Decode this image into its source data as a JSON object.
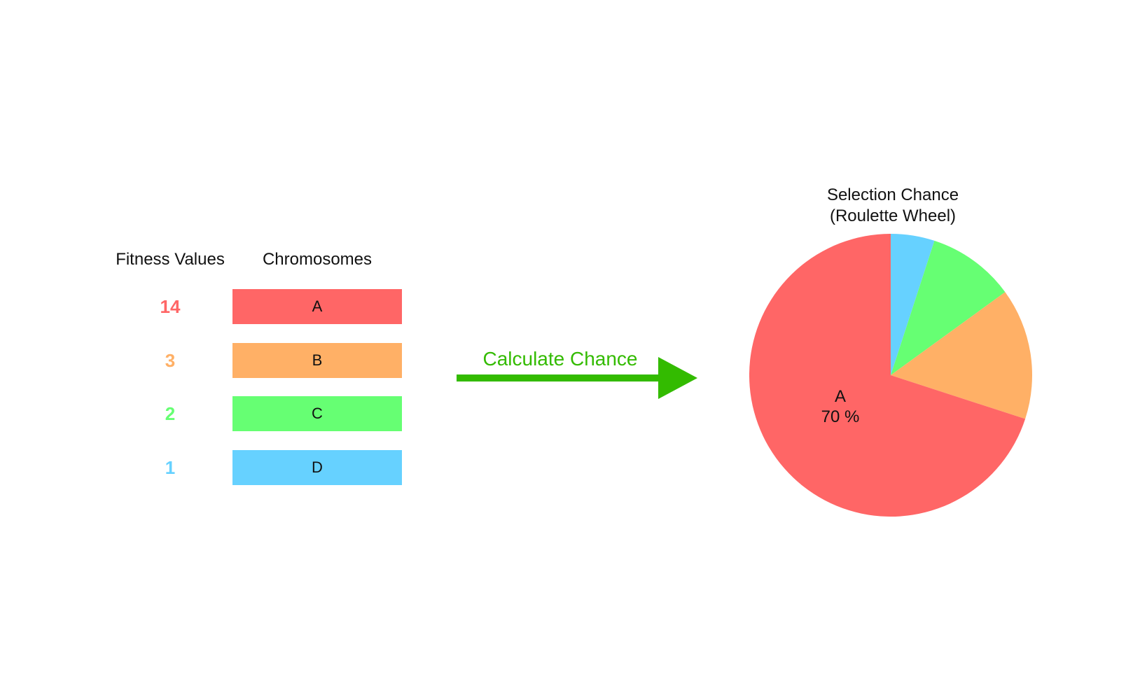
{
  "headers": {
    "fitness": "Fitness Values",
    "chromosomes": "Chromosomes"
  },
  "rows": [
    {
      "fitness": "14",
      "chromosome": "A",
      "color": "#ff6666"
    },
    {
      "fitness": "3",
      "chromosome": "B",
      "color": "#ffb066"
    },
    {
      "fitness": "2",
      "chromosome": "C",
      "color": "#66ff73"
    },
    {
      "fitness": "1",
      "chromosome": "D",
      "color": "#66d1ff"
    }
  ],
  "arrow": {
    "label": "Calculate Chance",
    "color": "#33bb00"
  },
  "pie": {
    "title_line1": "Selection Chance",
    "title_line2": "(Roulette Wheel)",
    "label_name": "A",
    "label_percent": "70 %",
    "slices": [
      {
        "name": "D",
        "value": 1,
        "color": "#66d1ff"
      },
      {
        "name": "C",
        "value": 2,
        "color": "#66ff73"
      },
      {
        "name": "B",
        "value": 3,
        "color": "#ffb066"
      },
      {
        "name": "A",
        "value": 14,
        "color": "#ff6666"
      }
    ]
  }
}
